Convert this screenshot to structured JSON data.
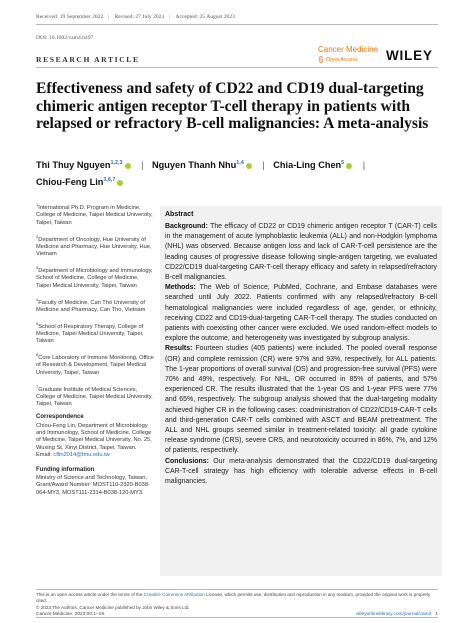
{
  "header": {
    "received": "Received: 19 September 2022",
    "revised": "Revised: 27 July 2023",
    "accepted": "Accepted: 25 August 2023",
    "doi": "DOI: 10.1002/cam4.6497",
    "section": "RESEARCH ARTICLE",
    "journal": "Cancer Medicine",
    "open_access": "Open Access",
    "publisher": "WILEY"
  },
  "title": "Effectiveness and safety of CD22 and CD19 dual-targeting chimeric antigen receptor T-cell therapy in patients with relapsed or refractory B-cell malignancies: A meta-analysis",
  "authors": [
    {
      "name": "Thi Thuy Nguyen",
      "sup": "1,2,3"
    },
    {
      "name": "Nguyen Thanh Nhu",
      "sup": "1,4"
    },
    {
      "name": "Chia-Ling Chen",
      "sup": "5"
    },
    {
      "name": "Chiou-Feng Lin",
      "sup": "3,6,7"
    }
  ],
  "affiliations": [
    {
      "sup": "1",
      "text": "International Ph.D. Program in Medicine, College of Medicine, Taipei Medical University, Taipei, Taiwan"
    },
    {
      "sup": "2",
      "text": "Department of Oncology, Hue University of Medicine and Pharmacy, Hue University, Hue, Vietnam"
    },
    {
      "sup": "3",
      "text": "Department of Microbiology and Immunology, School of Medicine, College of Medicine, Taipei Medical University, Taipei, Taiwan"
    },
    {
      "sup": "4",
      "text": "Faculty of Medicine, Can Tho University of Medicine and Pharmacy, Can Tho, Vietnam"
    },
    {
      "sup": "5",
      "text": "School of Respiratory Therapy, College of Medicine, Taipei Medical University, Taipei, Taiwan"
    },
    {
      "sup": "6",
      "text": "Core Laboratory of Immune Monitoring, Office of Research & Development, Taipei Medical University, Taipei, Taiwan"
    },
    {
      "sup": "7",
      "text": "Graduate Institute of Medical Sciences, College of Medicine, Taipei Medical University, Taipei, Taiwan"
    }
  ],
  "correspondence": {
    "heading": "Correspondence",
    "text": "Chiou-Feng Lin, Department of Microbiology and Immunology, School of Medicine, College of Medicine, Taipei Medical University, No. 25, Wuxing St, Xinyi District, Taipei, Taiwan.",
    "email_label": "Email:",
    "email": "cflin2014@tmu.edu.tw"
  },
  "funding": {
    "heading": "Funding information",
    "text": "Ministry of Science and Technology, Taiwan, Grant/Award Number: MOST110-2320-B038-064-MY3, MOST111-2314-B038-120-MY3."
  },
  "abstract": {
    "heading": "Abstract",
    "background_label": "Background:",
    "background": "The efficacy of CD22 or CD19 chimeric antigen receptor T (CAR-T) cells in the management of acute lymphoblastic leukemia (ALL) and non-Hodgkin lymphoma (NHL) was observed. Because antigen loss and lack of CAR-T-cell persistence are the leading causes of progressive disease following single-antigen targeting, we evaluated CD22/CD19 dual-targeting CAR-T-cell therapy efficacy and safety in relapsed/refractory B-cell malignancies.",
    "methods_label": "Methods:",
    "methods": "The Web of Science, PubMed, Cochrane, and Embase databases were searched until July 2022. Patients confirmed with any relapsed/refractory B-cell hematological malignancies were included regardless of age, gender, or ethnicity, receiving CD22 and CD19-dual-targeting CAR-T-cell therapy. The studies conducted on patients with coexisting other cancer were excluded. We used random-effect models to explore the outcome, and heterogeneity was investigated by subgroup analysis.",
    "results_label": "Results:",
    "results": "Fourteen studies (405 patients) were included. The pooled overall response (OR) and complete remission (CR) were 97% and 93%, respectively, for ALL patients. The 1-year proportions of overall survival (OS) and progression-free survival (PFS) were 70% and 49%, respectively. For NHL, OR occurred in 85% of patients, and 57% experienced CR. The results illustrated that the 1-year OS and 1-year PFS were 77% and 65%, respectively. The subgroup analysis showed that the dual-targeting modality achieved higher CR in the following cases: coadministration of CD22/CD19-CAR-T cells and third-generation CAR-T cells combined with ASCT and BEAM pretreatment. The ALL and NHL groups seemed similar in treatment-related toxicity: all grade cytokine release syndrome (CRS), severe CRS, and neurotoxicity occurred in 86%, 7%, and 12% of patients, respectively.",
    "conclusions_label": "Conclusions:",
    "conclusions": "Our meta-analysis demonstrated that the CD22/CD19 dual-targeting CAR-T-cell strategy has high efficiency with tolerable adverse effects in B-cell malignancies."
  },
  "license": {
    "line1_pre": "This is an open access article under the terms of the",
    "line1_link": "Creative Commons Attribution",
    "line1_post": "License, which permits use, distribution and reproduction in any medium, provided the original work is properly cited.",
    "copyright": "© 2023 The Authors. Cancer Medicine published by John Wiley & Sons Ltd."
  },
  "footer": {
    "left": "Cancer Medicine. 2023;00:1–19.",
    "right_link": "wileyonlinelibrary.com/journal/cam4",
    "page": "1"
  },
  "colors": {
    "journal_orange": "#e07a10",
    "link_blue": "#2b6cb0",
    "orcid_green": "#a6ce39",
    "abstract_bg": "#f1f1f1"
  }
}
